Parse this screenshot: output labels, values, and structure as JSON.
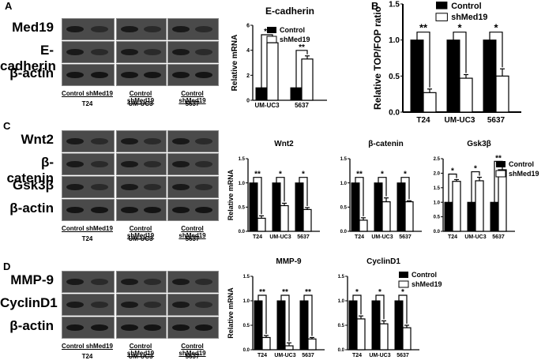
{
  "panels": {
    "A": {
      "letter": "A"
    },
    "B": {
      "letter": "B"
    },
    "C": {
      "letter": "C"
    },
    "D": {
      "letter": "D"
    }
  },
  "legend": {
    "control": "Control",
    "shmed19": "shMed19"
  },
  "lane_header": "Control shMed19",
  "cell_lines": [
    "T24",
    "UM-UC3",
    "5637"
  ],
  "blots": {
    "A": {
      "rows": [
        "Med19",
        "E- cadherin",
        "β-actin"
      ]
    },
    "C": {
      "rows": [
        "Wnt2",
        "β-catenin",
        "Gsk3β",
        "β-actin"
      ]
    },
    "D": {
      "rows": [
        "MMP-9",
        "CyclinD1",
        "β-actin"
      ]
    }
  },
  "colors": {
    "control": "#000000",
    "shmed19": "#ffffff",
    "blot_bg": "#4a4a4a",
    "band": "#111111"
  },
  "chart_data": [
    {
      "id": "A-ecad",
      "type": "bar",
      "title": "E-cadherin",
      "ylabel": "Relative mRNA",
      "xlabel": "",
      "categories": [
        "UM-UC3",
        "5637"
      ],
      "ylim": [
        0,
        6
      ],
      "yticks": [
        0,
        2,
        4,
        6
      ],
      "series": [
        {
          "name": "Control",
          "values": [
            1.0,
            1.0
          ],
          "errors": [
            0,
            0
          ]
        },
        {
          "name": "shMed19",
          "values": [
            4.6,
            3.3
          ],
          "errors": [
            0.2,
            0.25
          ]
        }
      ],
      "significance": [
        "**",
        "**"
      ],
      "legend_position": "right"
    },
    {
      "id": "B-topfop",
      "type": "bar",
      "title": "",
      "ylabel": "Relative TOP/FOP ratio",
      "xlabel": "",
      "categories": [
        "T24",
        "UM-UC3",
        "5637"
      ],
      "ylim": [
        0,
        1.5
      ],
      "yticks": [
        0.0,
        0.5,
        1.0,
        1.5
      ],
      "series": [
        {
          "name": "Control",
          "values": [
            1.0,
            1.0,
            1.0
          ],
          "errors": [
            0,
            0,
            0
          ]
        },
        {
          "name": "shMed19",
          "values": [
            0.27,
            0.47,
            0.5
          ],
          "errors": [
            0.05,
            0.05,
            0.1
          ]
        }
      ],
      "significance": [
        "**",
        "*",
        "*"
      ],
      "legend_position": "right"
    },
    {
      "id": "C-wnt2",
      "type": "bar",
      "title": "Wnt2",
      "ylabel": "Relative mRNA",
      "xlabel": "",
      "categories": [
        "T24",
        "UM-UC3",
        "5637"
      ],
      "ylim": [
        0,
        1.5
      ],
      "yticks": [
        0.0,
        0.5,
        1.0,
        1.5
      ],
      "series": [
        {
          "name": "Control",
          "values": [
            1.0,
            1.0,
            1.0
          ],
          "errors": [
            0,
            0,
            0
          ]
        },
        {
          "name": "shMed19",
          "values": [
            0.27,
            0.53,
            0.45
          ],
          "errors": [
            0.05,
            0.05,
            0.04
          ]
        }
      ],
      "significance": [
        "**",
        "*",
        "*"
      ]
    },
    {
      "id": "C-bcat",
      "type": "bar",
      "title": "β-catenin",
      "ylabel": "",
      "xlabel": "",
      "categories": [
        "T24",
        "UM-UC3",
        "5637"
      ],
      "ylim": [
        0,
        1.5
      ],
      "yticks": [
        0.0,
        0.5,
        1.0,
        1.5
      ],
      "series": [
        {
          "name": "Control",
          "values": [
            1.0,
            1.0,
            1.0
          ],
          "errors": [
            0,
            0,
            0
          ]
        },
        {
          "name": "shMed19",
          "values": [
            0.23,
            0.61,
            0.61
          ],
          "errors": [
            0.05,
            0.08,
            0.02
          ]
        }
      ],
      "significance": [
        "**",
        "*",
        "*"
      ]
    },
    {
      "id": "C-gsk3b",
      "type": "bar",
      "title": "Gsk3β",
      "ylabel": "",
      "xlabel": "",
      "categories": [
        "T24",
        "UM-UC3",
        "5637"
      ],
      "ylim": [
        0,
        2.5
      ],
      "yticks": [
        0.0,
        0.5,
        1.0,
        1.5,
        2.0,
        2.5
      ],
      "series": [
        {
          "name": "Control",
          "values": [
            1.0,
            1.0,
            1.0
          ],
          "errors": [
            0,
            0,
            0
          ]
        },
        {
          "name": "shMed19",
          "values": [
            1.72,
            1.74,
            2.12
          ],
          "errors": [
            0.06,
            0.12,
            0.1
          ]
        }
      ],
      "significance": [
        "*",
        "*",
        "**"
      ],
      "legend_position": "right"
    },
    {
      "id": "D-mmp9",
      "type": "bar",
      "title": "MMP-9",
      "ylabel": "Relative mRNA",
      "xlabel": "",
      "categories": [
        "T24",
        "UM-UC3",
        "5637"
      ],
      "ylim": [
        0,
        1.5
      ],
      "yticks": [
        0.0,
        0.5,
        1.0,
        1.5
      ],
      "series": [
        {
          "name": "Control",
          "values": [
            1.0,
            1.0,
            1.0
          ],
          "errors": [
            0,
            0,
            0
          ]
        },
        {
          "name": "shMed19",
          "values": [
            0.25,
            0.08,
            0.22
          ],
          "errors": [
            0.04,
            0.06,
            0.03
          ]
        }
      ],
      "significance": [
        "**",
        "**",
        "**"
      ]
    },
    {
      "id": "D-cyclind1",
      "type": "bar",
      "title": "CyclinD1",
      "ylabel": "",
      "xlabel": "",
      "categories": [
        "T24",
        "UM-UC3",
        "5637"
      ],
      "ylim": [
        0,
        1.5
      ],
      "yticks": [
        0.0,
        0.5,
        1.0,
        1.5
      ],
      "series": [
        {
          "name": "Control",
          "values": [
            1.0,
            1.0,
            1.0
          ],
          "errors": [
            0,
            0,
            0
          ]
        },
        {
          "name": "shMed19",
          "values": [
            0.63,
            0.53,
            0.45
          ],
          "errors": [
            0.06,
            0.06,
            0.05
          ]
        }
      ],
      "significance": [
        "*",
        "*",
        "*"
      ],
      "legend_position": "right"
    }
  ]
}
